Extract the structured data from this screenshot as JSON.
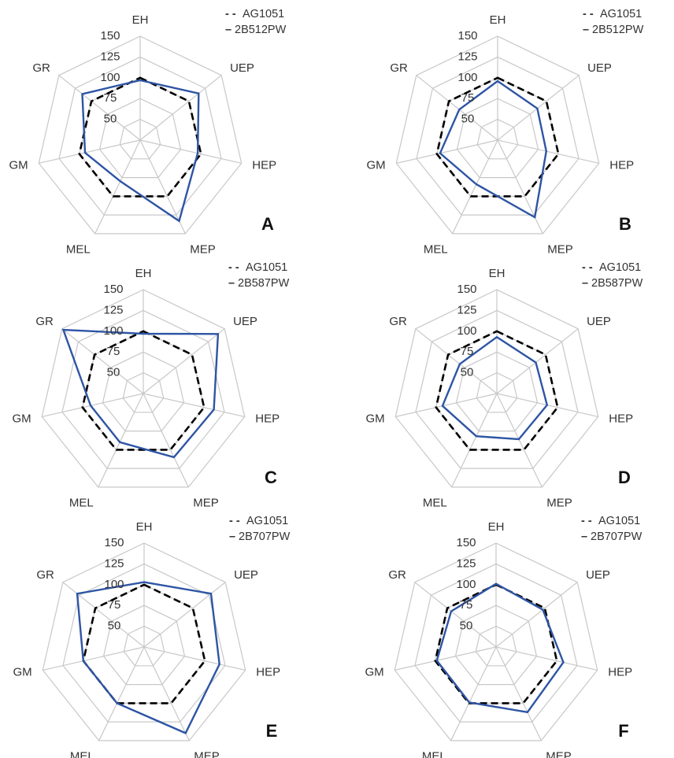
{
  "chart_data": [
    {
      "type": "radar",
      "panel": "A",
      "axes": [
        "EH",
        "UEP",
        "HEP",
        "MEP",
        "MEL",
        "GM",
        "GR"
      ],
      "rlim": [
        25,
        150
      ],
      "ticks": [
        "50",
        "75",
        "100",
        "125",
        "150"
      ],
      "grid": true,
      "legend_position": "top-right",
      "series": [
        {
          "name": "AG1051",
          "values": [
            100,
            100,
            100,
            100,
            100,
            100,
            100
          ],
          "color": "#000000",
          "style": "dashed",
          "legend_marker": "- -"
        },
        {
          "name": "2B512PW",
          "values": [
            97,
            115,
            96,
            133,
            80,
            93,
            114
          ],
          "color": "#2e55a4",
          "style": "solid",
          "legend_marker": "–"
        }
      ]
    },
    {
      "type": "radar",
      "panel": "B",
      "axes": [
        "EH",
        "UEP",
        "HEP",
        "MEP",
        "MEL",
        "GM",
        "GR"
      ],
      "rlim": [
        25,
        150
      ],
      "ticks": [
        "50",
        "75",
        "100",
        "125",
        "150"
      ],
      "grid": true,
      "legend_position": "top-right",
      "series": [
        {
          "name": "AG1051",
          "values": [
            100,
            100,
            100,
            100,
            100,
            100,
            100
          ],
          "color": "#000000",
          "style": "dashed",
          "legend_marker": "- -"
        },
        {
          "name": "2B512PW",
          "values": [
            96,
            86,
            85,
            128,
            84,
            96,
            84
          ],
          "color": "#2e55a4",
          "style": "solid",
          "legend_marker": "–"
        }
      ]
    },
    {
      "type": "radar",
      "panel": "C",
      "axes": [
        "EH",
        "UEP",
        "HEP",
        "MEP",
        "MEL",
        "GM",
        "GR"
      ],
      "rlim": [
        25,
        150
      ],
      "ticks": [
        "50",
        "75",
        "100",
        "125",
        "150"
      ],
      "grid": true,
      "legend_position": "top-right",
      "series": [
        {
          "name": "AG1051",
          "values": [
            100,
            100,
            100,
            100,
            100,
            100,
            100
          ],
          "color": "#000000",
          "style": "dashed",
          "legend_marker": "- -"
        },
        {
          "name": "2B587PW",
          "values": [
            97,
            140,
            112,
            110,
            90,
            90,
            148
          ],
          "color": "#2e55a4",
          "style": "solid",
          "legend_marker": "–"
        }
      ]
    },
    {
      "type": "radar",
      "panel": "D",
      "axes": [
        "EH",
        "UEP",
        "HEP",
        "MEP",
        "MEL",
        "GM",
        "GR"
      ],
      "rlim": [
        25,
        150
      ],
      "ticks": [
        "50",
        "75",
        "100",
        "125",
        "150"
      ],
      "grid": true,
      "legend_position": "top-right",
      "series": [
        {
          "name": "AG1051",
          "values": [
            100,
            100,
            100,
            100,
            100,
            100,
            100
          ],
          "color": "#000000",
          "style": "dashed",
          "legend_marker": "- -"
        },
        {
          "name": "2B587PW",
          "values": [
            93,
            85,
            87,
            86,
            82,
            92,
            82
          ],
          "color": "#2e55a4",
          "style": "solid",
          "legend_marker": "–"
        }
      ]
    },
    {
      "type": "radar",
      "panel": "E",
      "axes": [
        "EH",
        "UEP",
        "HEP",
        "MEP",
        "MEL",
        "GM",
        "GR"
      ],
      "rlim": [
        25,
        150
      ],
      "ticks": [
        "50",
        "75",
        "100",
        "125",
        "150"
      ],
      "grid": true,
      "legend_position": "top-right",
      "series": [
        {
          "name": "AG1051",
          "values": [
            100,
            100,
            100,
            100,
            100,
            100,
            100
          ],
          "color": "#000000",
          "style": "dashed",
          "legend_marker": "- -"
        },
        {
          "name": "2B707PW",
          "values": [
            103,
            128,
            118,
            140,
            100,
            100,
            128
          ],
          "color": "#2e55a4",
          "style": "solid",
          "legend_marker": "–"
        }
      ]
    },
    {
      "type": "radar",
      "panel": "F",
      "axes": [
        "EH",
        "UEP",
        "HEP",
        "MEP",
        "MEL",
        "GM",
        "GR"
      ],
      "rlim": [
        25,
        150
      ],
      "ticks": [
        "50",
        "75",
        "100",
        "125",
        "150"
      ],
      "grid": true,
      "legend_position": "top-right",
      "series": [
        {
          "name": "AG1051",
          "values": [
            100,
            100,
            100,
            100,
            100,
            100,
            100
          ],
          "color": "#000000",
          "style": "dashed",
          "legend_marker": "- -"
        },
        {
          "name": "2B707PW",
          "values": [
            101,
            97,
            108,
            112,
            99,
            98,
            94
          ],
          "color": "#2e55a4",
          "style": "solid",
          "legend_marker": "–"
        }
      ]
    }
  ]
}
